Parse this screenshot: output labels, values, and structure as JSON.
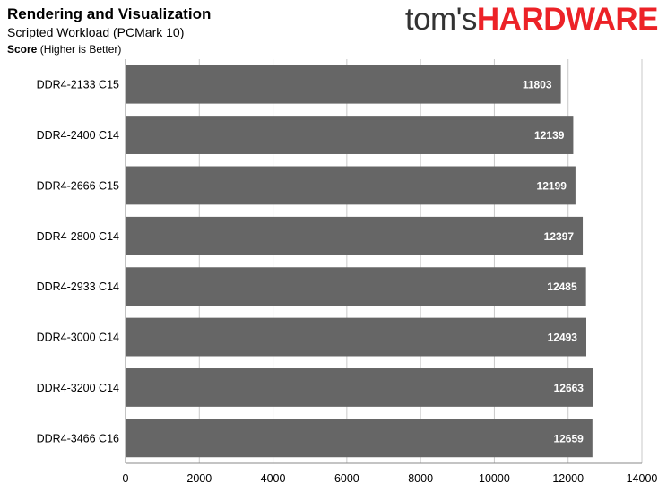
{
  "header": {
    "title": "Rendering and Visualization",
    "subtitle": "Scripted Workload  (PCMark 10)",
    "metric_bold": "Score",
    "metric_rest": " (Higher is Better)"
  },
  "logo": {
    "part1": "tom's",
    "part2": "HARDWARE"
  },
  "colors": {
    "bar": "#666666",
    "bar_label": "#ffffff",
    "grid": "#c8c8c8",
    "axis": "#888888",
    "logo_accent": "#ec2227"
  },
  "chart_data": {
    "type": "bar",
    "orientation": "horizontal",
    "categories": [
      "DDR4-2133 C15",
      "DDR4-2400 C14",
      "DDR4-2666 C15",
      "DDR4-2800 C14",
      "DDR4-2933 C14",
      "DDR4-3000 C14",
      "DDR4-3200 C14",
      "DDR4-3466 C16"
    ],
    "values": [
      11803,
      12139,
      12199,
      12397,
      12485,
      12493,
      12663,
      12659
    ],
    "xlim": [
      0,
      14000
    ],
    "xticks": [
      0,
      2000,
      4000,
      6000,
      8000,
      10000,
      12000,
      14000
    ],
    "grid": true,
    "legend": "none",
    "data_labels": true
  }
}
